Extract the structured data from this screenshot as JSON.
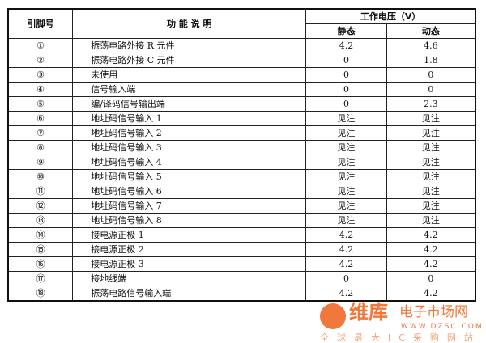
{
  "header": {
    "pin": "引脚号",
    "function": "功 能 说 明",
    "voltage": "工作电压（V）",
    "static": "静态",
    "dynamic": "动态"
  },
  "rows": [
    {
      "pin": "①",
      "function": "振荡电路外接 R 元件",
      "static": "4.2",
      "dynamic": "4.6"
    },
    {
      "pin": "②",
      "function": "振荡电路外接 C 元件",
      "static": "0",
      "dynamic": "1.8"
    },
    {
      "pin": "③",
      "function": "未使用",
      "static": "0",
      "dynamic": "0"
    },
    {
      "pin": "④",
      "function": "信号输入端",
      "static": "0",
      "dynamic": "0"
    },
    {
      "pin": "⑤",
      "function": "编/译码信号输出端",
      "static": "0",
      "dynamic": "2.3"
    },
    {
      "pin": "⑥",
      "function": "地址码信号输入 1",
      "static": "见注",
      "dynamic": "见注"
    },
    {
      "pin": "⑦",
      "function": "地址码信号输入 2",
      "static": "见注",
      "dynamic": "见注"
    },
    {
      "pin": "⑧",
      "function": "地址码信号输入 3",
      "static": "见注",
      "dynamic": "见注"
    },
    {
      "pin": "⑨",
      "function": "地址码信号输入 4",
      "static": "见注",
      "dynamic": "见注"
    },
    {
      "pin": "⑩",
      "function": "地址码信号输入 5",
      "static": "见注",
      "dynamic": "见注"
    },
    {
      "pin": "⑪",
      "function": "地址码信号输入 6",
      "static": "见注",
      "dynamic": "见注"
    },
    {
      "pin": "⑫",
      "function": "地址码信号输入 7",
      "static": "见注",
      "dynamic": "见注"
    },
    {
      "pin": "⑬",
      "function": "地址码信号输入 8",
      "static": "见注",
      "dynamic": "见注"
    },
    {
      "pin": "⑭",
      "function": "接电源正极 1",
      "static": "4.2",
      "dynamic": "4.2"
    },
    {
      "pin": "⑮",
      "function": "接电源正极 2",
      "static": "4.2",
      "dynamic": "4.2"
    },
    {
      "pin": "⑯",
      "function": "接电源正极 3",
      "static": "4.2",
      "dynamic": "4.2"
    },
    {
      "pin": "⑰",
      "function": "接地线端",
      "static": "0",
      "dynamic": "0"
    },
    {
      "pin": "⑱",
      "function": "振荡电路信号输入端",
      "static": "4.2",
      "dynamic": "4.2"
    }
  ],
  "watermark": {
    "brand": "维库",
    "sub": "电子市场网",
    "url": "WWW.DZSC.COM",
    "slogan": "全球最大IC采购网站",
    "color": "#f0783c"
  }
}
